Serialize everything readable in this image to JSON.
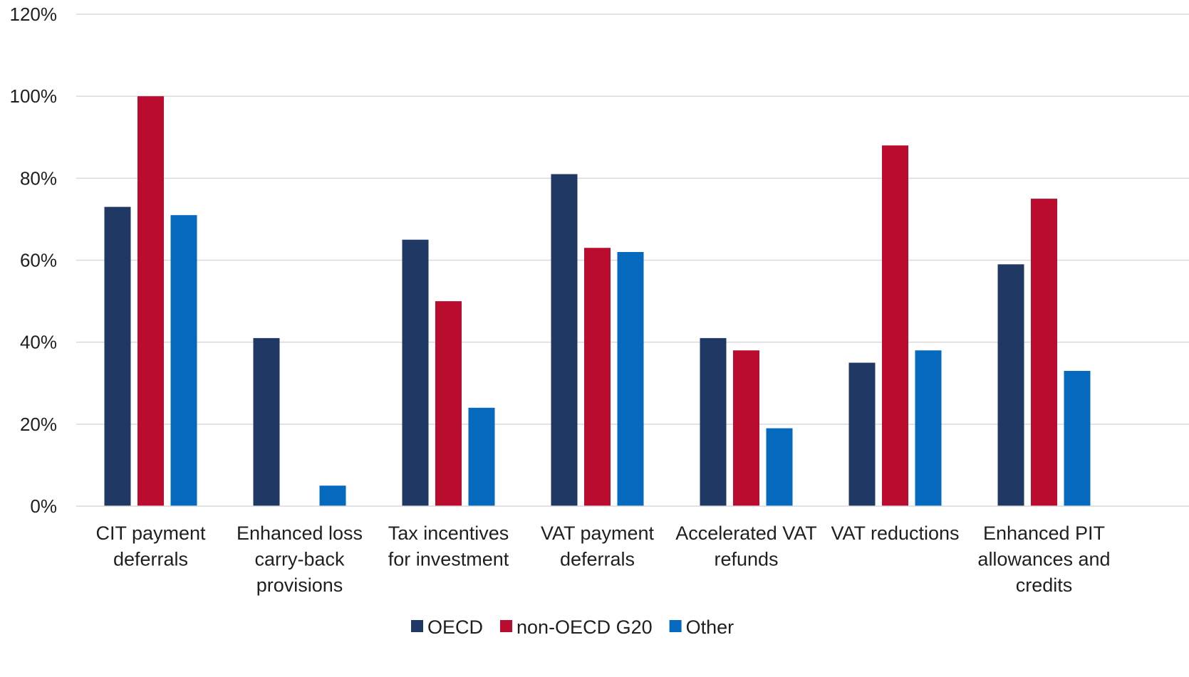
{
  "chart_data": {
    "type": "bar",
    "categories": [
      [
        "CIT payment",
        "deferrals"
      ],
      [
        "Enhanced loss",
        "carry-back",
        "provisions"
      ],
      [
        "Tax incentives",
        "for investment"
      ],
      [
        "VAT payment",
        "deferrals"
      ],
      [
        "Accelerated VAT",
        "refunds"
      ],
      [
        "VAT reductions"
      ],
      [
        "Enhanced PIT",
        "allowances and",
        "credits"
      ]
    ],
    "series": [
      {
        "name": "OECD",
        "color": "#203864",
        "values": [
          73,
          41,
          65,
          81,
          41,
          35,
          59
        ]
      },
      {
        "name": "non-OECD G20",
        "color": "#BA0C2F",
        "values": [
          100,
          0,
          50,
          63,
          38,
          88,
          75
        ]
      },
      {
        "name": "Other",
        "color": "#0569BE",
        "values": [
          71,
          5,
          24,
          62,
          19,
          38,
          33
        ]
      }
    ],
    "ylim": [
      0,
      120
    ],
    "yticks": [
      0,
      20,
      40,
      60,
      80,
      100,
      120
    ],
    "ytick_labels": [
      "0%",
      "20%",
      "40%",
      "60%",
      "80%",
      "100%",
      "120%"
    ],
    "grid": true,
    "gridline_color": "#d9d9d9",
    "legend_position": "bottom-center",
    "title": "",
    "xlabel": "",
    "ylabel": ""
  }
}
